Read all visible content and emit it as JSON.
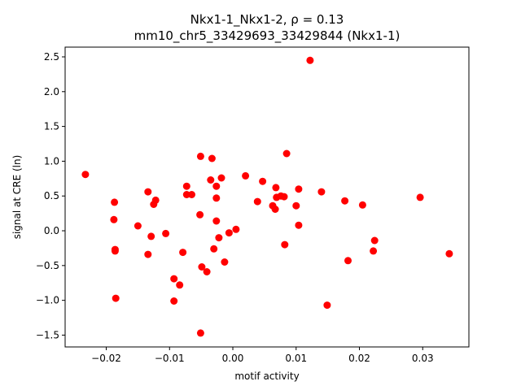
{
  "chart_data": {
    "type": "scatter",
    "title_line1": "Nkx1-1_Nkx1-2, ρ = 0.13",
    "title_line2": "mm10_chr5_33429693_33429844 (Nkx1-1)",
    "xlabel": "motif activity",
    "ylabel": "signal at CRE (ln)",
    "xlim": [
      -0.0265,
      0.0373
    ],
    "ylim": [
      -1.67,
      2.64
    ],
    "x_ticks": [
      -0.02,
      -0.01,
      0.0,
      0.01,
      0.02,
      0.03
    ],
    "x_tick_labels": [
      "−0.02",
      "−0.01",
      "0.00",
      "0.01",
      "0.02",
      "0.03"
    ],
    "y_ticks": [
      -1.5,
      -1.0,
      -0.5,
      0.0,
      0.5,
      1.0,
      1.5,
      2.0,
      2.5
    ],
    "y_tick_labels": [
      "−1.5",
      "−1.0",
      "−0.5",
      "0.0",
      "0.5",
      "1.0",
      "1.5",
      "2.0",
      "2.5"
    ],
    "marker_color": "#ff0000",
    "grid": false,
    "series": [
      {
        "points": [
          [
            -0.0233,
            0.81
          ],
          [
            -0.0187,
            0.41
          ],
          [
            -0.0188,
            0.16
          ],
          [
            -0.0186,
            -0.27
          ],
          [
            -0.0186,
            -0.29
          ],
          [
            -0.0185,
            -0.97
          ],
          [
            -0.015,
            0.07
          ],
          [
            -0.0134,
            0.56
          ],
          [
            -0.0134,
            -0.34
          ],
          [
            -0.0129,
            -0.08
          ],
          [
            -0.0125,
            0.38
          ],
          [
            -0.0122,
            0.44
          ],
          [
            -0.0106,
            -0.04
          ],
          [
            -0.0093,
            -0.69
          ],
          [
            -0.0093,
            -1.01
          ],
          [
            -0.0084,
            -0.78
          ],
          [
            -0.0079,
            -0.31
          ],
          [
            -0.0073,
            0.64
          ],
          [
            -0.0073,
            0.52
          ],
          [
            -0.0065,
            0.52
          ],
          [
            -0.0051,
            1.07
          ],
          [
            -0.0052,
            0.23
          ],
          [
            -0.0049,
            -0.52
          ],
          [
            -0.0051,
            -1.47
          ],
          [
            -0.0041,
            -0.59
          ],
          [
            -0.0035,
            0.73
          ],
          [
            -0.0033,
            1.04
          ],
          [
            -0.003,
            -0.26
          ],
          [
            -0.0026,
            0.64
          ],
          [
            -0.0026,
            0.47
          ],
          [
            -0.0026,
            0.14
          ],
          [
            -0.0022,
            -0.1
          ],
          [
            -0.0018,
            0.76
          ],
          [
            -0.0013,
            -0.45
          ],
          [
            -0.0006,
            -0.03
          ],
          [
            0.0005,
            0.02
          ],
          [
            0.002,
            0.79
          ],
          [
            0.0039,
            0.42
          ],
          [
            0.0047,
            0.71
          ],
          [
            0.0063,
            0.36
          ],
          [
            0.0067,
            0.31
          ],
          [
            0.0068,
            0.62
          ],
          [
            0.0069,
            0.48
          ],
          [
            0.0076,
            0.5
          ],
          [
            0.0081,
            0.49
          ],
          [
            0.0082,
            -0.2
          ],
          [
            0.0085,
            1.11
          ],
          [
            0.01,
            0.36
          ],
          [
            0.0104,
            0.6
          ],
          [
            0.0104,
            0.08
          ],
          [
            0.0122,
            2.45
          ],
          [
            0.014,
            0.56
          ],
          [
            0.0149,
            -1.07
          ],
          [
            0.0177,
            0.43
          ],
          [
            0.0182,
            -0.43
          ],
          [
            0.0205,
            0.37
          ],
          [
            0.0222,
            -0.29
          ],
          [
            0.0224,
            -0.14
          ],
          [
            0.0296,
            0.48
          ],
          [
            0.0342,
            -0.33
          ]
        ]
      }
    ]
  }
}
